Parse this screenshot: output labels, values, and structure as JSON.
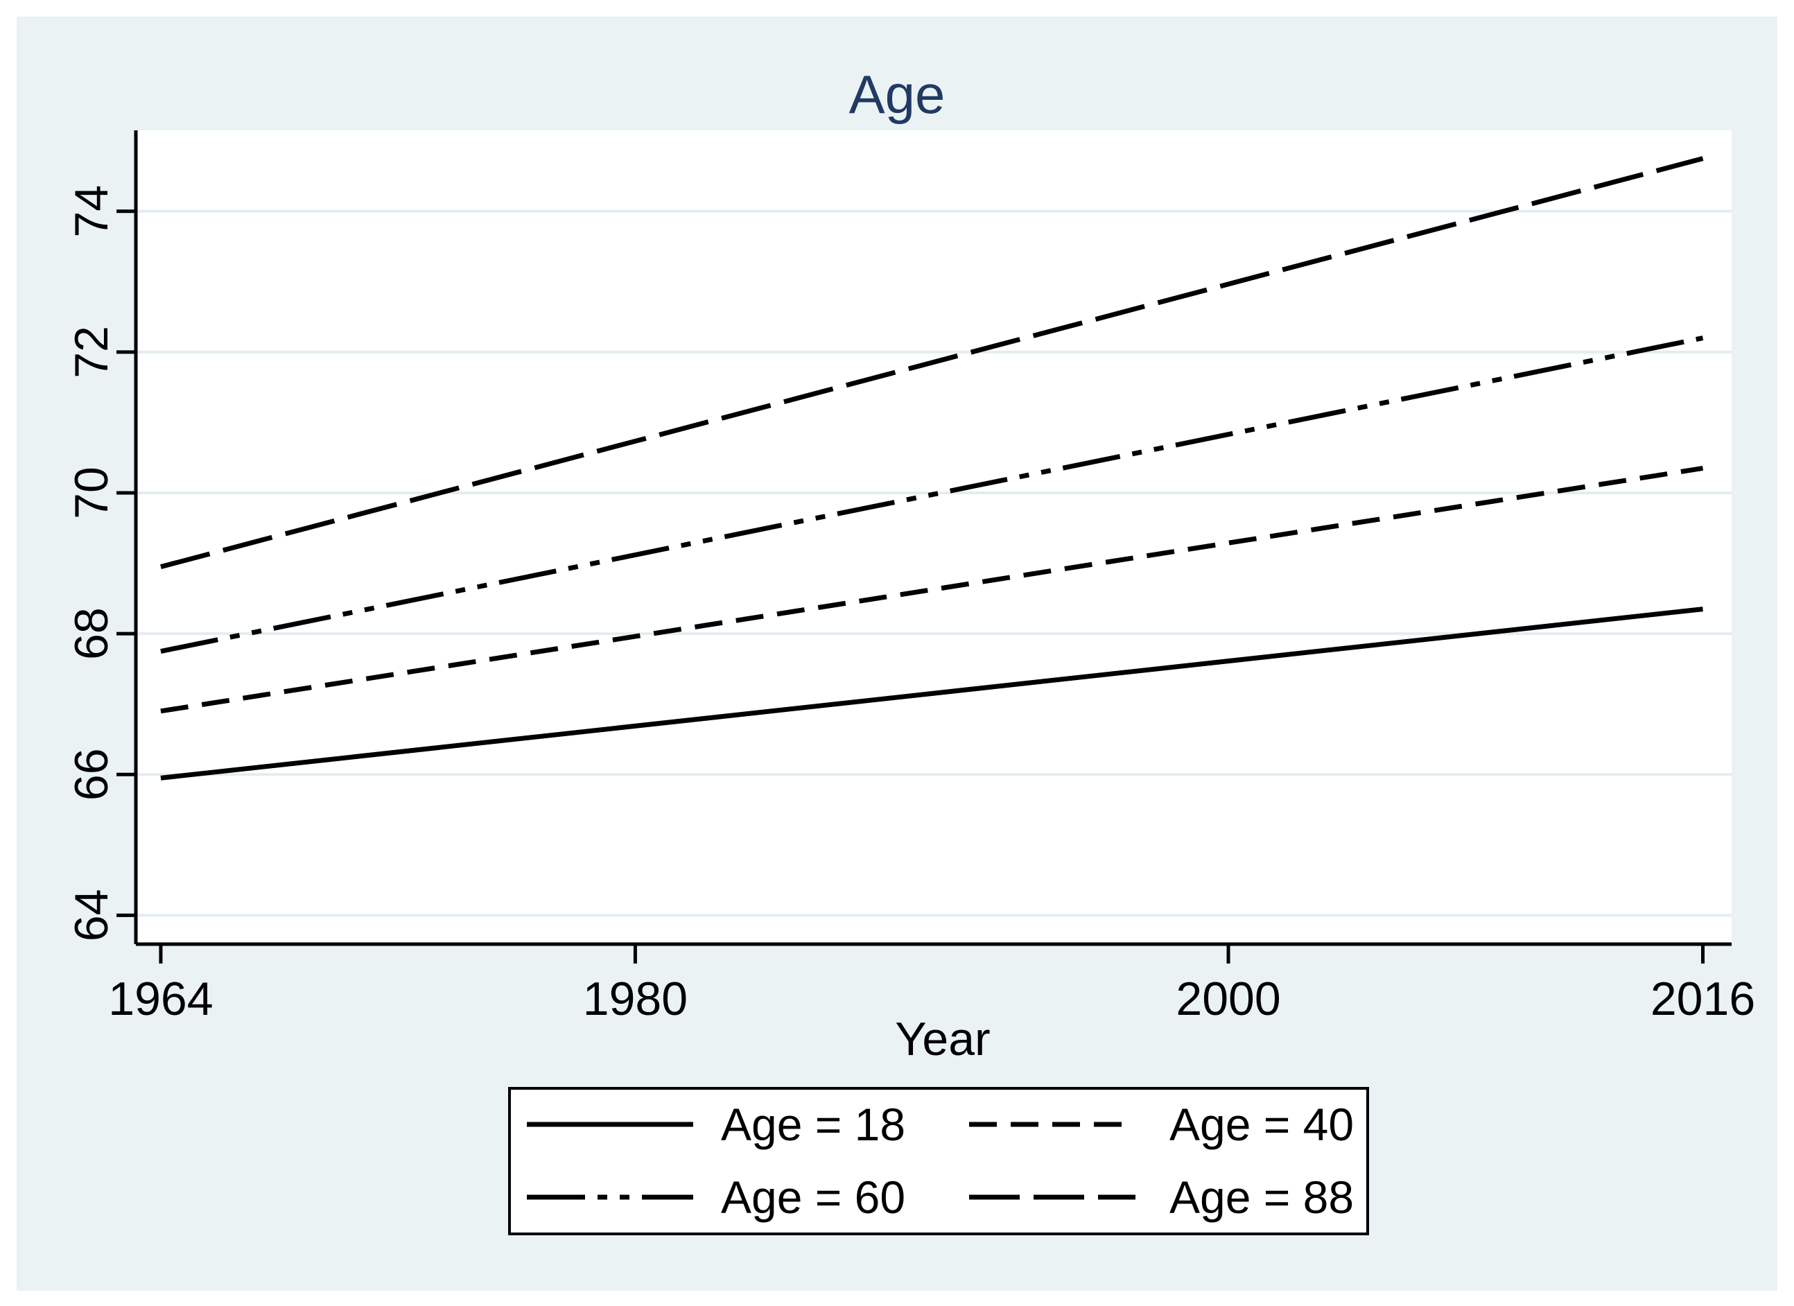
{
  "figure": {
    "window_title": "Age over Year line chart",
    "note": ""
  },
  "colors": {
    "page_background": "#ffffff",
    "canvas_background": "#eaf2f3",
    "plot_background": "#ffffff",
    "grid": "#e3edf1",
    "axis": "#000000",
    "tick_label": "#000000",
    "series_line": "#000000",
    "title": "#213a63",
    "legend_background": "#ffffff",
    "legend_border": "#000000"
  },
  "chart_data": {
    "type": "line",
    "title": "Age",
    "xlabel": "Year",
    "ylabel": "",
    "x_ticks": [
      1964,
      1980,
      2000,
      2016
    ],
    "y_ticks": [
      64,
      66,
      68,
      70,
      72,
      74
    ],
    "xlim": [
      1963.16,
      2016.97
    ],
    "ylim": [
      63.59,
      75.15
    ],
    "grid": true,
    "legend_position": "bottom-center",
    "x": [
      1964,
      2016
    ],
    "series": [
      {
        "name": "Age = 18",
        "linestyle": "solid",
        "values": [
          65.95,
          68.35
        ]
      },
      {
        "name": "Age = 40",
        "linestyle": "short-dash",
        "values": [
          66.9,
          70.35
        ]
      },
      {
        "name": "Age = 60",
        "linestyle": "dash-dot-dot",
        "values": [
          67.75,
          72.2
        ]
      },
      {
        "name": "Age = 88",
        "linestyle": "long-dash",
        "values": [
          68.95,
          74.75
        ]
      }
    ]
  }
}
